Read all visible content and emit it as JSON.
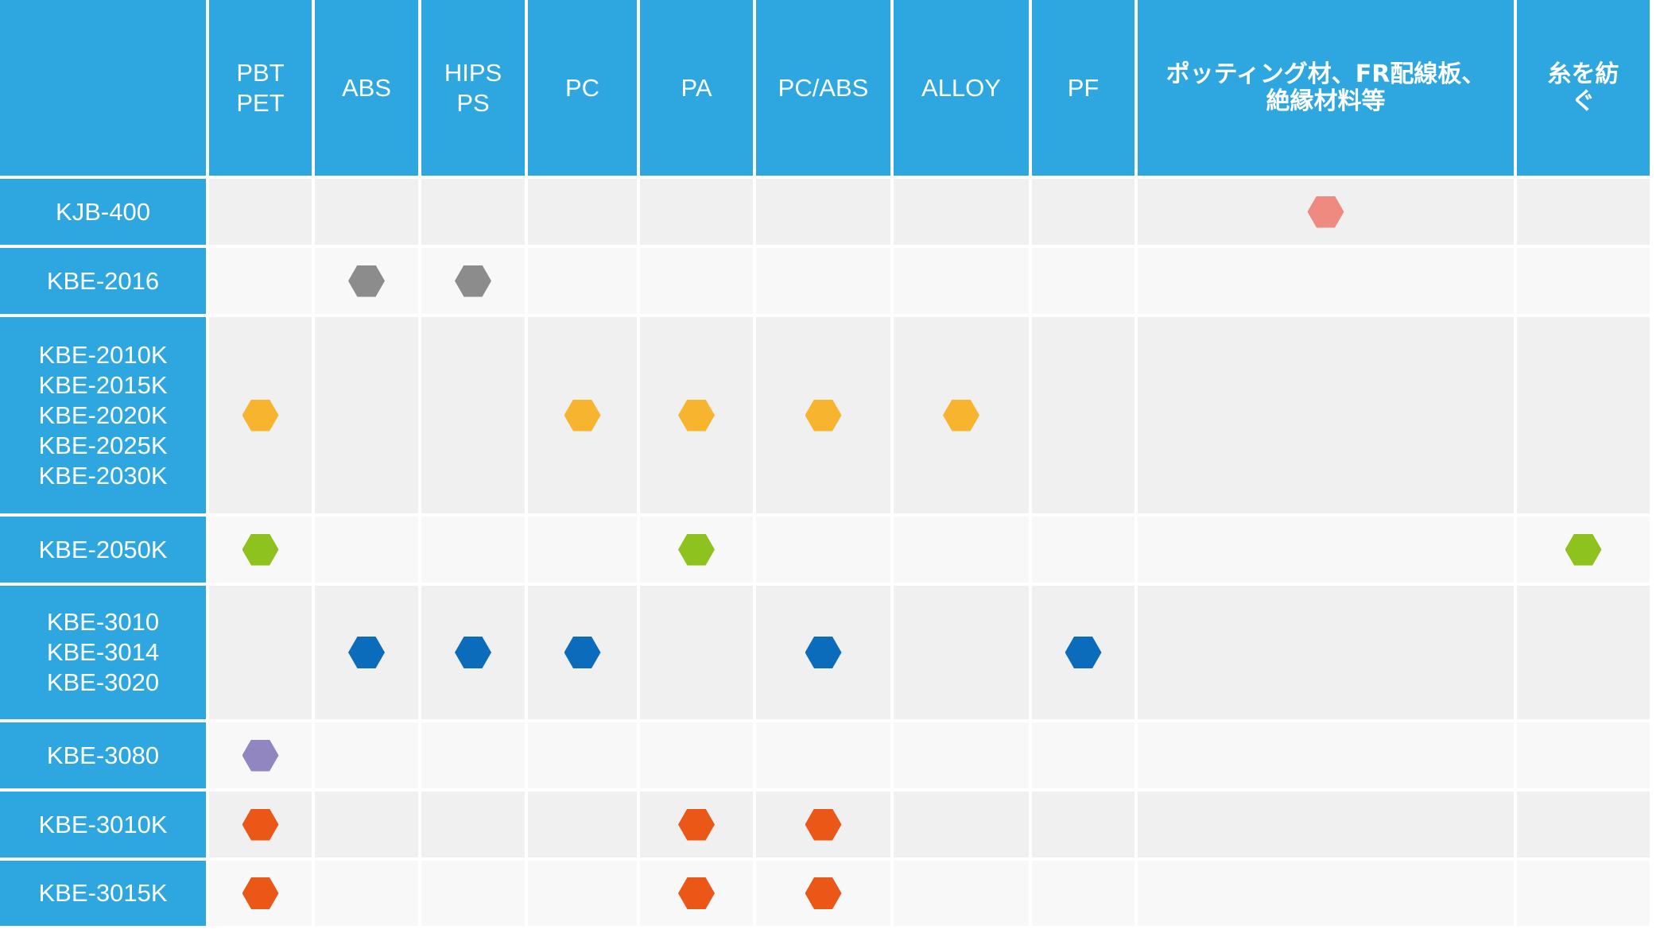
{
  "colors": {
    "header_bg": "#2ea6df",
    "row_odd_bg": "#f0f0f0",
    "row_even_bg": "#f8f8f8",
    "marker_salmon": "#ef8a80",
    "marker_gray": "#8c8c8c",
    "marker_yellow": "#f7b52f",
    "marker_green": "#8ec21f",
    "marker_blue": "#0b6cbc",
    "marker_purple": "#9286c1",
    "marker_orange": "#ea5717"
  },
  "columns": [
    {
      "label": "PBT\nPET"
    },
    {
      "label": "ABS"
    },
    {
      "label": "HIPS\nPS"
    },
    {
      "label": "PC"
    },
    {
      "label": "PA"
    },
    {
      "label": "PC/ABS"
    },
    {
      "label": "ALLOY"
    },
    {
      "label": "PF"
    },
    {
      "label": "ポッティング材、FR配線板、絶縁材料等"
    },
    {
      "label": "糸を紡ぐ"
    }
  ],
  "rows": [
    {
      "label": "KJB-400",
      "marker": "marker_salmon",
      "marks": [
        0,
        0,
        0,
        0,
        0,
        0,
        0,
        0,
        1,
        0
      ]
    },
    {
      "label": "KBE-2016",
      "marker": "marker_gray",
      "marks": [
        0,
        1,
        1,
        0,
        0,
        0,
        0,
        0,
        0,
        0
      ]
    },
    {
      "label": "KBE-2010K\nKBE-2015K\nKBE-2020K\nKBE-2025K\nKBE-2030K",
      "marker": "marker_yellow",
      "marks": [
        1,
        0,
        0,
        1,
        1,
        1,
        1,
        0,
        0,
        0
      ]
    },
    {
      "label": "KBE-2050K",
      "marker": "marker_green",
      "marks": [
        1,
        0,
        0,
        0,
        1,
        0,
        0,
        0,
        0,
        1
      ]
    },
    {
      "label": "KBE-3010\nKBE-3014\nKBE-3020",
      "marker": "marker_blue",
      "marks": [
        0,
        1,
        1,
        1,
        0,
        1,
        0,
        1,
        0,
        0
      ]
    },
    {
      "label": "KBE-3080",
      "marker": "marker_purple",
      "marks": [
        1,
        0,
        0,
        0,
        0,
        0,
        0,
        0,
        0,
        0
      ]
    },
    {
      "label": "KBE-3010K",
      "marker": "marker_orange",
      "marks": [
        1,
        0,
        0,
        0,
        1,
        1,
        0,
        0,
        0,
        0
      ]
    },
    {
      "label": "KBE-3015K",
      "marker": "marker_orange",
      "marks": [
        1,
        0,
        0,
        0,
        1,
        1,
        0,
        0,
        0,
        0
      ]
    }
  ]
}
